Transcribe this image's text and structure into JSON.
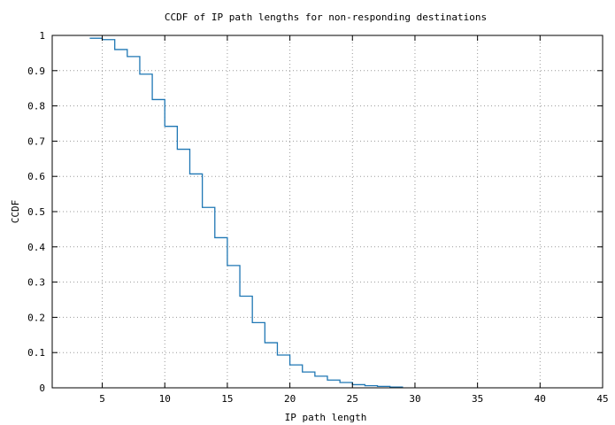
{
  "chart_data": {
    "type": "line",
    "title": "CCDF of IP path lengths for non-responding destinations",
    "xlabel": "IP path length",
    "ylabel": "CCDF",
    "xlim": [
      1,
      45
    ],
    "ylim": [
      0,
      1
    ],
    "xticks": [
      5,
      10,
      15,
      20,
      25,
      30,
      35,
      40,
      45
    ],
    "yticks": [
      0,
      0.1,
      0.2,
      0.3,
      0.4,
      0.5,
      0.6,
      0.7,
      0.8,
      0.9,
      1
    ],
    "xtick_labels": [
      "5",
      "10",
      "15",
      "20",
      "25",
      "30",
      "35",
      "40",
      "45"
    ],
    "ytick_labels": [
      "0",
      "0.1",
      "0.2",
      "0.3",
      "0.4",
      "0.5",
      "0.6",
      "0.7",
      "0.8",
      "0.9",
      "1"
    ],
    "grid": true,
    "grid_style": "dotted",
    "step": true,
    "series": [
      {
        "color": "#1f77b4",
        "x": [
          4,
          5,
          6,
          7,
          8,
          9,
          10,
          11,
          12,
          13,
          14,
          15,
          16,
          17,
          18,
          19,
          20,
          21,
          22,
          23,
          24,
          25,
          26,
          27,
          28,
          29
        ],
        "y": [
          0.992,
          0.988,
          0.96,
          0.94,
          0.89,
          0.818,
          0.742,
          0.677,
          0.607,
          0.512,
          0.426,
          0.347,
          0.26,
          0.185,
          0.128,
          0.093,
          0.065,
          0.045,
          0.033,
          0.022,
          0.015,
          0.009,
          0.006,
          0.004,
          0.002,
          0.001
        ]
      }
    ]
  }
}
